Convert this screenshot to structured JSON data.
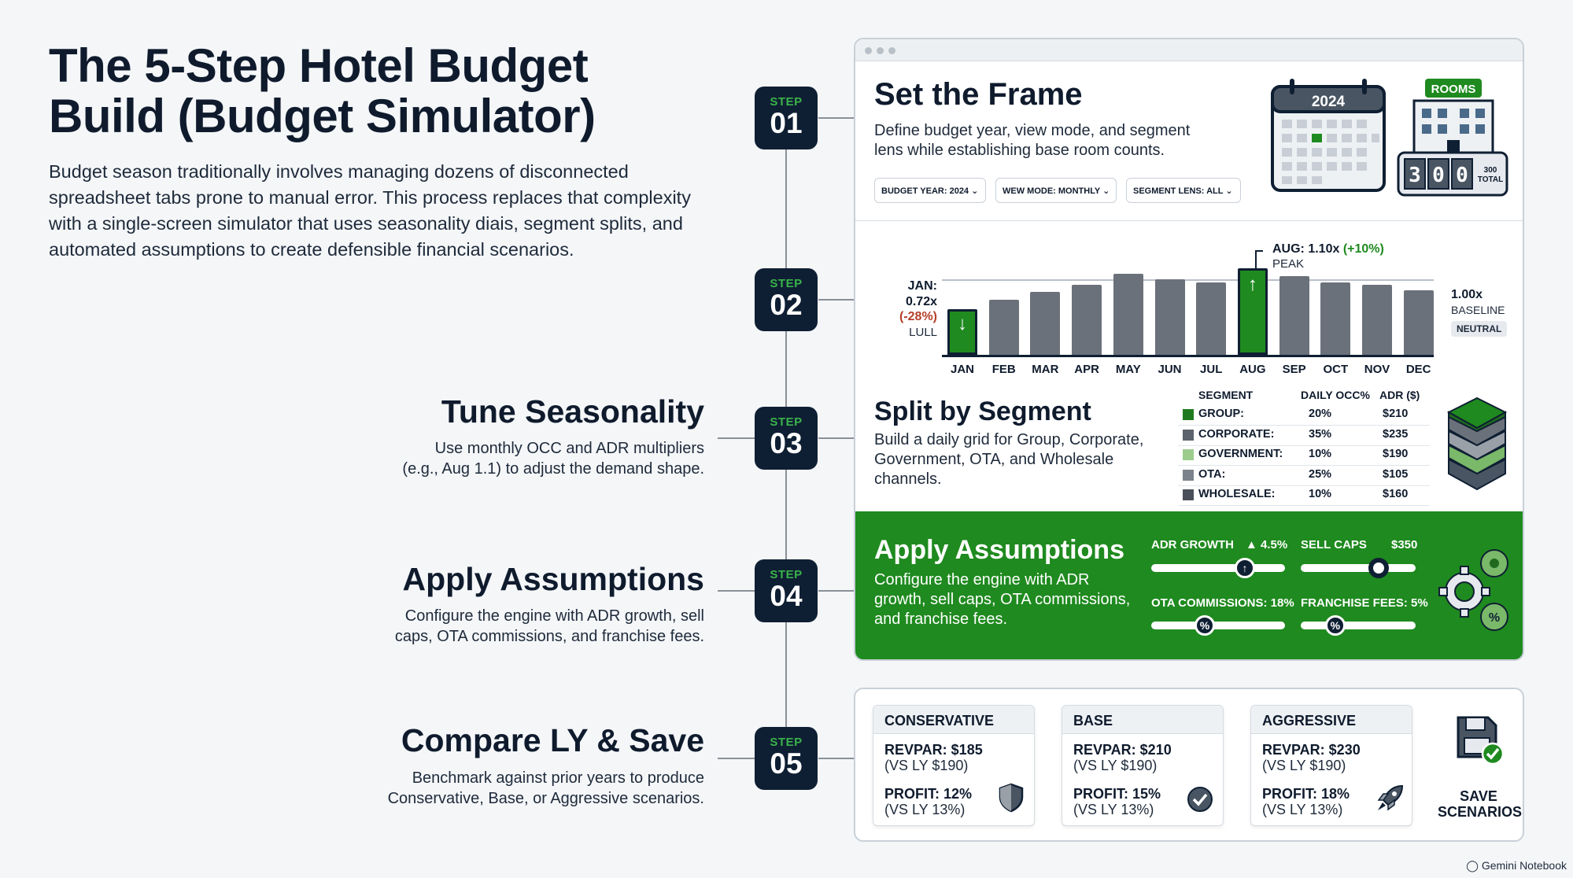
{
  "header": {
    "title_line1": "The 5-Step Hotel Budget",
    "title_line2": "Build (Budget Simulator)",
    "intro": "Budget season traditionally involves managing dozens of disconnected spreadsheet tabs prone to manual error. This process replaces that complexity with a single-screen simulator that uses seasonality diais, segment splits, and automated assumptions to create defensible financial scenarios."
  },
  "steps": [
    {
      "label": "STEP",
      "num": "01"
    },
    {
      "label": "STEP",
      "num": "02"
    },
    {
      "label": "STEP",
      "num": "03",
      "title": "Tune Seasonality",
      "desc1": "Use monthly OCC and ADR multipliers",
      "desc2": "(e.g., Aug 1.1) to adjust the demand shape."
    },
    {
      "label": "STEP",
      "num": "04",
      "title": "Apply Assumptions",
      "desc1": "Configure the engine with ADR growth, sell",
      "desc2": "caps, OTA commissions, and franchise fees."
    },
    {
      "label": "STEP",
      "num": "05",
      "title": "Compare LY & Save",
      "desc1": "Benchmark against prior years to produce",
      "desc2": "Conservative, Base, or Aggressive scenarios."
    }
  ],
  "frame": {
    "title": "Set the Frame",
    "desc1": "Define budget year, view mode, and segment",
    "desc2": "lens while establishing base room counts.",
    "dropdowns": [
      "BUDGET YEAR: 2024",
      "WEW MODE: MONTHLY",
      "SEGMENT LENS: ALL"
    ],
    "calendar_year": "2024",
    "rooms_label": "ROOMS",
    "rooms_digits": [
      "3",
      "0",
      "0"
    ],
    "rooms_total_a": "300",
    "rooms_total_b": "TOTAL"
  },
  "chart_data": {
    "type": "bar",
    "categories": [
      "JAN",
      "FEB",
      "MAR",
      "APR",
      "MAY",
      "JUN",
      "JUL",
      "AUG",
      "SEP",
      "OCT",
      "NOV",
      "DEC"
    ],
    "values": [
      0.72,
      0.81,
      0.88,
      0.95,
      1.05,
      1.0,
      0.97,
      1.1,
      1.03,
      0.97,
      0.95,
      0.9
    ],
    "highlight": [
      "JAN",
      "AUG"
    ],
    "baseline": 1.0,
    "ann_jan": {
      "l1": "JAN:",
      "l2": "0.72x",
      "l3": "(-28%)",
      "l4": "LULL"
    },
    "ann_aug": {
      "l1": "AUG: 1.10x ",
      "l1b": "(+10%)",
      "l2": "PEAK"
    },
    "ann_base": {
      "l1": "1.00x",
      "l2": "BASELINE",
      "l3": "NEUTRAL"
    },
    "colors": {
      "bar": "#6b717a",
      "highlight": "#1f8a1f"
    }
  },
  "segments": {
    "title": "Split by Segment",
    "desc1": "Build a daily grid for Group, Corporate,",
    "desc2": "Government, OTA, and Wholesale",
    "desc3": "channels.",
    "headers": [
      "SEGMENT",
      "DAILY OCC%",
      "ADR ($)"
    ],
    "rows": [
      {
        "name": "GROUP:",
        "occ": "20%",
        "adr": "$210",
        "color": "#1f7a1f"
      },
      {
        "name": "CORPORATE:",
        "occ": "35%",
        "adr": "$235",
        "color": "#5d636c"
      },
      {
        "name": "GOVERNMENT:",
        "occ": "10%",
        "adr": "$190",
        "color": "#9ccc8c"
      },
      {
        "name": "OTA:",
        "occ": "25%",
        "adr": "$105",
        "color": "#7c828b"
      },
      {
        "name": "WHOLESALE:",
        "occ": "10%",
        "adr": "$160",
        "color": "#4a5059"
      }
    ]
  },
  "assumptions": {
    "title": "Apply Assumptions",
    "desc1": "Configure the engine with ADR",
    "desc2": "growth, sell caps, OTA commissions,",
    "desc3": "and franchise fees.",
    "adr_growth_label": "ADR GROWTH",
    "adr_growth_value": "4.5%",
    "sell_caps_label": "SELL CAPS",
    "sell_caps_value": "$350",
    "ota_label": "OTA COMMISSIONS: 18%",
    "franchise_label": "FRANCHISE FEES: 5%",
    "adr_growth_level": 0.7,
    "sell_caps_level": 0.68,
    "ota_level": 0.4,
    "franchise_level": 0.3
  },
  "scenarios": [
    {
      "name": "CONSERVATIVE",
      "revpar": "REVPAR: $185",
      "revpar_ly": "(VS LY $190)",
      "profit": "PROFIT: 12%",
      "profit_ly": "(VS LY 13%)",
      "icon": "shield-icon"
    },
    {
      "name": "BASE",
      "revpar": "REVPAR: $210",
      "revpar_ly": "(VS LY $190)",
      "profit": "PROFIT: 15%",
      "profit_ly": "(VS LY 13%)",
      "icon": "check-icon"
    },
    {
      "name": "AGGRESSIVE",
      "revpar": "REVPAR: $230",
      "revpar_ly": "(VS LY $190)",
      "profit": "PROFIT: 18%",
      "profit_ly": "(VS LY 13%)",
      "icon": "rocket-icon"
    }
  ],
  "save": {
    "line1": "SAVE",
    "line2": "SCENARIOS"
  },
  "watermark": "Gemini Notebook"
}
